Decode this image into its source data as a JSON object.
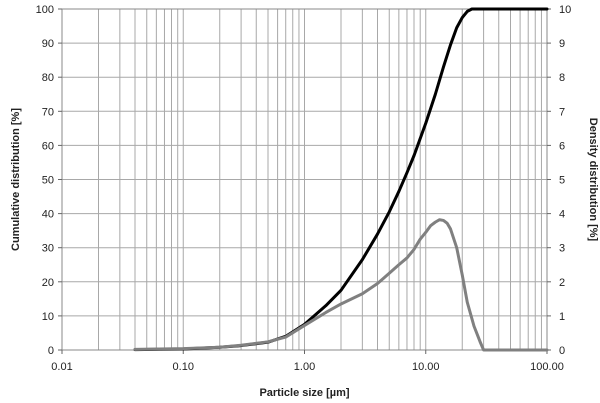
{
  "chart_data": {
    "type": "line",
    "xlabel": "Particle size [µm]",
    "ylabel": "Cumulative distribution [%]",
    "y2label": "Density distribution [%]",
    "x_scale": "log",
    "xlim": [
      0.01,
      100
    ],
    "ylim": [
      0,
      100
    ],
    "y2lim": [
      0,
      10
    ],
    "x_ticks": [
      "0.01",
      "0.10",
      "1.00",
      "10.00",
      "100.00"
    ],
    "y_ticks": [
      "0",
      "10",
      "20",
      "30",
      "40",
      "50",
      "60",
      "70",
      "80",
      "90",
      "100"
    ],
    "y2_ticks": [
      "0",
      "1",
      "2",
      "3",
      "4",
      "5",
      "6",
      "7",
      "8",
      "9",
      "10"
    ],
    "grid": true,
    "series": [
      {
        "axis": "left",
        "color": "#000000",
        "x": [
          0.04,
          0.1,
          0.2,
          0.3,
          0.5,
          0.7,
          1.0,
          1.5,
          2,
          3,
          4,
          5,
          6,
          7,
          8,
          10,
          12,
          14,
          16,
          18,
          20,
          22,
          24,
          26,
          28,
          30,
          40,
          100
        ],
        "y": [
          0.1,
          0.3,
          0.8,
          1.3,
          2.3,
          4.0,
          7.5,
          13.0,
          17.5,
          26.5,
          34.0,
          40.5,
          46.5,
          52.0,
          57.0,
          66.5,
          75.0,
          83.0,
          89.5,
          94.5,
          97.5,
          99.3,
          100,
          100,
          100,
          100,
          100,
          100
        ]
      },
      {
        "axis": "right",
        "color": "#808080",
        "x": [
          0.04,
          0.1,
          0.2,
          0.3,
          0.5,
          0.7,
          1.0,
          1.5,
          2,
          3,
          4,
          5,
          6,
          7,
          8,
          9,
          10,
          11,
          12,
          13,
          14,
          15,
          16,
          18,
          20,
          22,
          25,
          28,
          30,
          40,
          100
        ],
        "y": [
          0.02,
          0.04,
          0.08,
          0.14,
          0.24,
          0.38,
          0.72,
          1.1,
          1.35,
          1.65,
          1.95,
          2.25,
          2.5,
          2.7,
          2.95,
          3.25,
          3.45,
          3.65,
          3.75,
          3.82,
          3.8,
          3.72,
          3.55,
          3.0,
          2.2,
          1.4,
          0.7,
          0.25,
          0.0,
          0.0,
          0.0
        ]
      }
    ]
  }
}
